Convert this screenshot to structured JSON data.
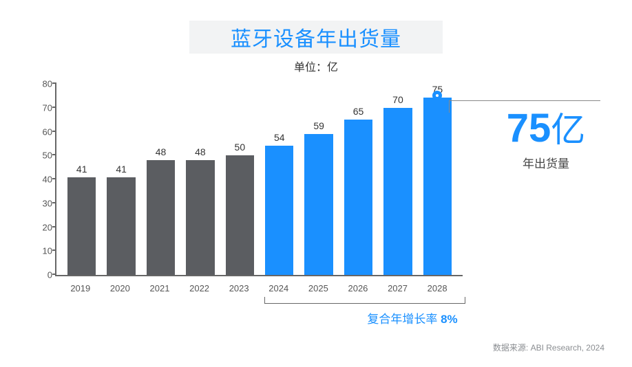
{
  "chart": {
    "type": "bar",
    "title": "蓝牙设备年出货量",
    "unit_label": "单位：亿",
    "title_color": "#1a90ff",
    "title_bg": "#f2f3f4",
    "title_fontsize": 30,
    "unit_color": "#333333",
    "unit_fontsize": 16,
    "background_color": "#ffffff",
    "axis_color": "#666666",
    "label_fontsize": 13,
    "bar_label_fontsize": 14,
    "ylim": [
      0,
      80
    ],
    "ytick_step": 10,
    "yticks": [
      0,
      10,
      20,
      30,
      40,
      50,
      60,
      70,
      80
    ],
    "categories": [
      "2019",
      "2020",
      "2021",
      "2022",
      "2023",
      "2024",
      "2025",
      "2026",
      "2027",
      "2028"
    ],
    "values": [
      41,
      41,
      48,
      48,
      50,
      54,
      59,
      65,
      70,
      75
    ],
    "bar_colors": [
      "#5b5d61",
      "#5b5d61",
      "#5b5d61",
      "#5b5d61",
      "#5b5d61",
      "#1a90ff",
      "#1a90ff",
      "#1a90ff",
      "#1a90ff",
      "#1a90ff"
    ],
    "bar_width": 0.72,
    "highlight_end_marker": true,
    "marker_color": "#1a90ff"
  },
  "cagr": {
    "bracket_start_index": 5,
    "bracket_end_index": 9,
    "label": "复合年增长率 ",
    "percent": "8%",
    "text_color": "#1a90ff",
    "fontsize": 17
  },
  "callout": {
    "value": "75",
    "unit": "亿",
    "sub": "年出货量",
    "color": "#1a90ff",
    "value_fontsize": 58,
    "sub_color": "#444444",
    "sub_fontsize": 17
  },
  "source": {
    "text": "数据来源: ABI Research, 2024",
    "color": "#8a8d91",
    "fontsize": 12
  }
}
